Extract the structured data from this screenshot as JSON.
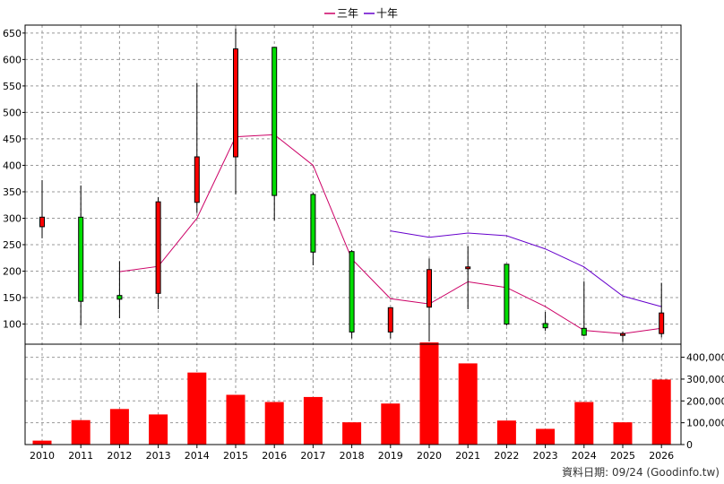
{
  "chart_data": {
    "type": "candlestick-with-volume",
    "categories": [
      "2010",
      "2011",
      "2012",
      "2013",
      "2014",
      "2015",
      "2016",
      "2017",
      "2018",
      "2019",
      "2020",
      "2021",
      "2022",
      "2023",
      "2024",
      "2025",
      "2026"
    ],
    "price_axis": {
      "ylim": [
        62,
        665
      ],
      "ticks": [
        100,
        150,
        200,
        250,
        300,
        350,
        400,
        450,
        500,
        550,
        600,
        650
      ]
    },
    "volume_axis": {
      "ylim": [
        0,
        460000
      ],
      "ticks": [
        0,
        100000,
        200000,
        300000,
        400000
      ],
      "tick_labels": [
        "0",
        "100,000",
        "200,000",
        "300,000",
        "400,000"
      ]
    },
    "candles": [
      {
        "open": 284,
        "close": 302,
        "high": 372,
        "low": 262
      },
      {
        "open": 302,
        "close": 143,
        "high": 362,
        "low": 97
      },
      {
        "open": 154,
        "close": 147,
        "high": 219,
        "low": 111
      },
      {
        "open": 158,
        "close": 331,
        "high": 340,
        "low": 128
      },
      {
        "open": 330,
        "close": 416,
        "high": 556,
        "low": 310
      },
      {
        "open": 416,
        "close": 620,
        "high": 659,
        "low": 345
      },
      {
        "open": 623,
        "close": 343,
        "high": 623,
        "low": 296
      },
      {
        "open": 345,
        "close": 236,
        "high": 348,
        "low": 211
      },
      {
        "open": 237,
        "close": 85,
        "high": 240,
        "low": 73
      },
      {
        "open": 85,
        "close": 131,
        "high": 131,
        "low": 73
      },
      {
        "open": 132,
        "close": 203,
        "high": 224,
        "low": 67
      },
      {
        "open": 205,
        "close": 208,
        "high": 247,
        "low": 128
      },
      {
        "open": 213,
        "close": 100,
        "high": 213,
        "low": 97
      },
      {
        "open": 101,
        "close": 93,
        "high": 123,
        "low": 87
      },
      {
        "open": 92,
        "close": 79,
        "high": 181,
        "low": 77
      },
      {
        "open": 80,
        "close": 82,
        "high": 86,
        "low": 66
      },
      {
        "open": 82,
        "close": 121,
        "high": 178,
        "low": 75
      }
    ],
    "volume": [
      18000,
      112000,
      163000,
      138000,
      330000,
      228000,
      195000,
      218000,
      102000,
      188000,
      468000,
      372000,
      110000,
      72000,
      195000,
      102000,
      298000
    ],
    "series": [
      {
        "name": "三年",
        "color": "#cc0066",
        "values": [
          null,
          null,
          199,
          209,
          300,
          454,
          458,
          400,
          223,
          148,
          138,
          180,
          169,
          133,
          88,
          82,
          92
        ]
      },
      {
        "name": "十年",
        "color": "#6600cc",
        "values": [
          null,
          null,
          null,
          null,
          null,
          null,
          null,
          null,
          null,
          276,
          264,
          272,
          267,
          242,
          208,
          153,
          133
        ]
      }
    ],
    "colors": {
      "up": "#ff0000",
      "down": "#00dd00",
      "volume": "#ff0000",
      "grid": "#999999"
    },
    "credit": "資料日期: 09/24  (Goodinfo.tw)"
  }
}
